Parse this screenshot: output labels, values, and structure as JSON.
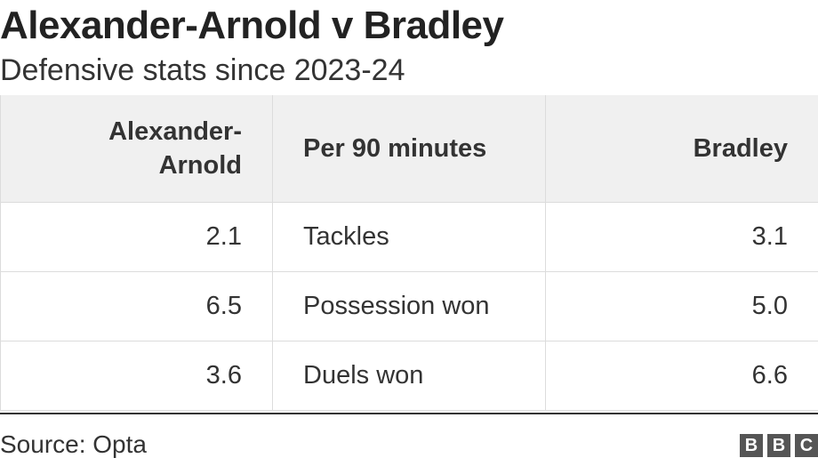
{
  "header": {
    "title": "Alexander-Arnold v Bradley",
    "subtitle": "Defensive stats since 2023-24"
  },
  "table": {
    "columns": [
      "Alexander-Arnold",
      "Per 90 minutes",
      "Bradley"
    ],
    "rows": [
      [
        "2.1",
        "Tackles",
        "3.1"
      ],
      [
        "6.5",
        "Possession won",
        "5.0"
      ],
      [
        "3.6",
        "Duels won",
        "6.6"
      ]
    ]
  },
  "footer": {
    "source": "Source: Opta",
    "logo": [
      "B",
      "B",
      "C"
    ]
  }
}
